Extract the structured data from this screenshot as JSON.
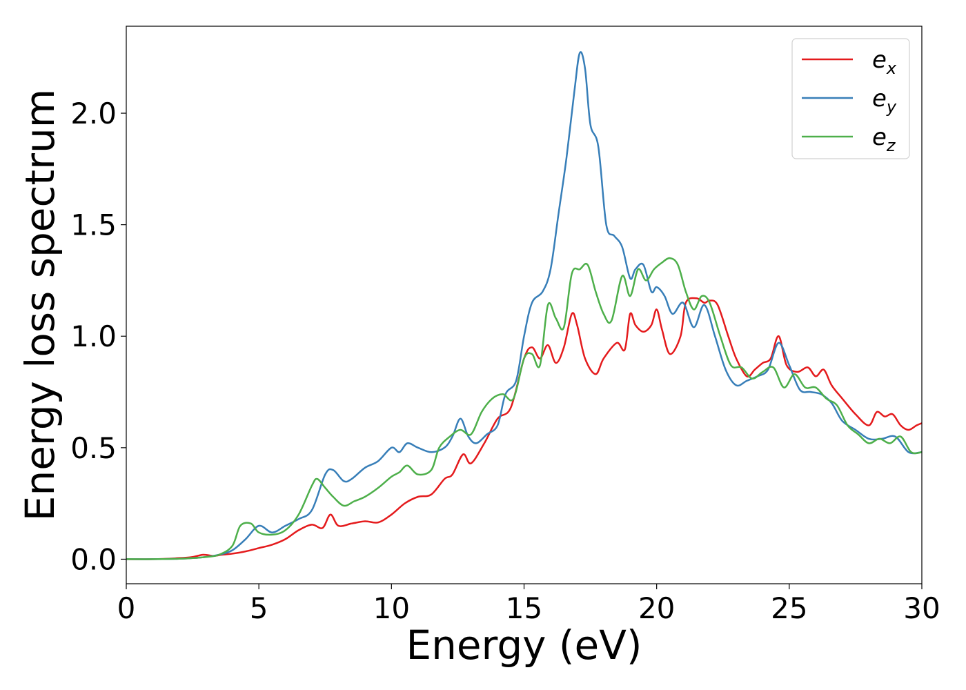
{
  "chart_data": {
    "type": "line",
    "title": "",
    "xlabel": "Energy (eV)",
    "ylabel": "Energy loss spectrum",
    "xlim": [
      0,
      30
    ],
    "ylim": [
      -0.11,
      2.39
    ],
    "xticks": [
      0,
      5,
      10,
      15,
      20,
      25,
      30
    ],
    "yticks": [
      0.0,
      0.5,
      1.0,
      1.5,
      2.0
    ],
    "xtick_labels": [
      "0",
      "5",
      "10",
      "15",
      "20",
      "25",
      "30"
    ],
    "ytick_labels": [
      "0.0",
      "0.5",
      "1.0",
      "1.5",
      "2.0"
    ],
    "grid": false,
    "legend_position": "top-right",
    "series": [
      {
        "name": "e_x",
        "legend_base": "e",
        "legend_sub": "x",
        "color": "#e41a1c",
        "x": [
          0,
          1,
          2,
          2.5,
          2.9,
          3.3,
          3.6,
          4,
          4.5,
          5,
          5.5,
          6,
          6.5,
          7,
          7.4,
          7.7,
          8,
          8.5,
          9,
          9.5,
          10,
          10.5,
          11,
          11.5,
          12,
          12.3,
          12.7,
          13,
          13.5,
          14,
          14.5,
          15,
          15.3,
          15.6,
          15.9,
          16.2,
          16.5,
          16.8,
          17,
          17.3,
          17.7,
          18,
          18.5,
          18.8,
          19,
          19.2,
          19.5,
          19.8,
          20,
          20.2,
          20.5,
          20.9,
          21.1,
          21.5,
          21.8,
          22,
          22.3,
          22.7,
          23,
          23.4,
          23.7,
          24,
          24.3,
          24.6,
          24.9,
          25.3,
          25.7,
          26,
          26.3,
          26.6,
          27,
          27.5,
          28,
          28.3,
          28.6,
          28.9,
          29.2,
          29.5,
          29.8,
          30
        ],
        "values": [
          0.0,
          0.0,
          0.005,
          0.01,
          0.02,
          0.015,
          0.02,
          0.025,
          0.035,
          0.05,
          0.065,
          0.09,
          0.13,
          0.155,
          0.14,
          0.2,
          0.15,
          0.16,
          0.17,
          0.165,
          0.2,
          0.25,
          0.28,
          0.29,
          0.36,
          0.38,
          0.47,
          0.43,
          0.52,
          0.63,
          0.68,
          0.9,
          0.95,
          0.9,
          0.96,
          0.88,
          0.95,
          1.1,
          1.05,
          0.9,
          0.83,
          0.9,
          0.97,
          0.94,
          1.1,
          1.05,
          1.02,
          1.05,
          1.12,
          1.03,
          0.92,
          1.0,
          1.15,
          1.17,
          1.15,
          1.16,
          1.14,
          1.0,
          0.9,
          0.82,
          0.85,
          0.88,
          0.9,
          1.0,
          0.87,
          0.84,
          0.86,
          0.82,
          0.85,
          0.78,
          0.72,
          0.65,
          0.6,
          0.66,
          0.64,
          0.65,
          0.6,
          0.58,
          0.6,
          0.61
        ]
      },
      {
        "name": "e_y",
        "legend_base": "e",
        "legend_sub": "y",
        "color": "#377eb8",
        "x": [
          0,
          1,
          2,
          2.5,
          3,
          3.5,
          4,
          4.5,
          5,
          5.5,
          6,
          6.5,
          7,
          7.5,
          7.8,
          8.2,
          8.5,
          9,
          9.5,
          10,
          10.3,
          10.6,
          11,
          11.5,
          12,
          12.3,
          12.6,
          12.9,
          13.2,
          13.6,
          14,
          14.3,
          14.7,
          15,
          15.3,
          15.7,
          16,
          16.3,
          16.6,
          16.9,
          17.1,
          17.3,
          17.5,
          17.8,
          18.1,
          18.4,
          18.7,
          19,
          19.2,
          19.5,
          19.8,
          20,
          20.3,
          20.6,
          21,
          21.4,
          21.8,
          22.2,
          22.6,
          23,
          23.4,
          23.8,
          24.2,
          24.6,
          25,
          25.4,
          25.8,
          26.2,
          26.6,
          27,
          27.5,
          28,
          28.5,
          29,
          29.5,
          30
        ],
        "values": [
          0.0,
          0.0,
          0.002,
          0.005,
          0.01,
          0.02,
          0.04,
          0.09,
          0.15,
          0.12,
          0.15,
          0.18,
          0.22,
          0.38,
          0.4,
          0.35,
          0.36,
          0.41,
          0.44,
          0.5,
          0.48,
          0.52,
          0.5,
          0.48,
          0.5,
          0.55,
          0.63,
          0.55,
          0.52,
          0.56,
          0.6,
          0.74,
          0.8,
          1.0,
          1.15,
          1.2,
          1.3,
          1.55,
          1.8,
          2.1,
          2.27,
          2.2,
          1.95,
          1.85,
          1.5,
          1.45,
          1.4,
          1.26,
          1.3,
          1.32,
          1.2,
          1.22,
          1.18,
          1.1,
          1.15,
          1.04,
          1.14,
          1.0,
          0.85,
          0.78,
          0.8,
          0.82,
          0.85,
          0.97,
          0.87,
          0.76,
          0.75,
          0.74,
          0.7,
          0.62,
          0.58,
          0.54,
          0.54,
          0.55,
          0.48,
          0.48
        ]
      },
      {
        "name": "e_z",
        "legend_base": "e",
        "legend_sub": "z",
        "color": "#4daf4a",
        "x": [
          0,
          1,
          2,
          2.5,
          3,
          3.5,
          4,
          4.3,
          4.7,
          5,
          5.5,
          6,
          6.5,
          7,
          7.2,
          7.5,
          7.8,
          8.2,
          8.6,
          9,
          9.5,
          10,
          10.3,
          10.6,
          11,
          11.5,
          11.8,
          12.2,
          12.6,
          13,
          13.4,
          13.8,
          14.2,
          14.6,
          15,
          15.3,
          15.6,
          15.9,
          16.2,
          16.5,
          16.8,
          17.1,
          17.4,
          17.7,
          18,
          18.3,
          18.7,
          19,
          19.3,
          19.6,
          19.9,
          20.2,
          20.5,
          20.8,
          21.1,
          21.4,
          21.7,
          22,
          22.4,
          22.8,
          23.2,
          23.6,
          24,
          24.4,
          24.8,
          25.2,
          25.6,
          26,
          26.4,
          26.8,
          27.2,
          27.6,
          28,
          28.4,
          28.8,
          29.2,
          29.6,
          30
        ],
        "values": [
          0.0,
          0.0,
          0.002,
          0.005,
          0.01,
          0.02,
          0.06,
          0.15,
          0.16,
          0.12,
          0.11,
          0.13,
          0.2,
          0.33,
          0.36,
          0.32,
          0.28,
          0.24,
          0.26,
          0.28,
          0.32,
          0.37,
          0.39,
          0.42,
          0.38,
          0.4,
          0.5,
          0.55,
          0.58,
          0.56,
          0.66,
          0.72,
          0.74,
          0.72,
          0.9,
          0.92,
          0.87,
          1.14,
          1.08,
          1.04,
          1.28,
          1.3,
          1.32,
          1.2,
          1.1,
          1.07,
          1.27,
          1.18,
          1.3,
          1.25,
          1.3,
          1.33,
          1.35,
          1.32,
          1.2,
          1.12,
          1.18,
          1.15,
          1.0,
          0.87,
          0.86,
          0.81,
          0.84,
          0.86,
          0.77,
          0.83,
          0.77,
          0.77,
          0.72,
          0.69,
          0.6,
          0.56,
          0.52,
          0.54,
          0.52,
          0.55,
          0.48,
          0.48
        ]
      }
    ]
  }
}
